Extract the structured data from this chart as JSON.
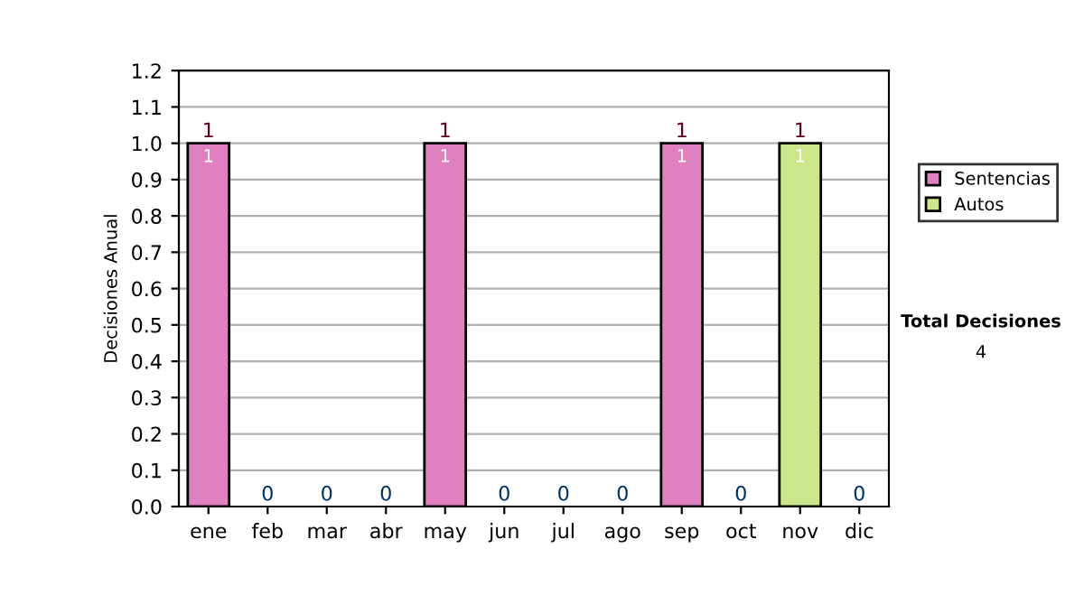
{
  "chart_data": {
    "type": "bar",
    "ylabel": "Decisiones Anual",
    "categories": [
      "ene",
      "feb",
      "mar",
      "abr",
      "may",
      "jun",
      "jul",
      "ago",
      "sep",
      "oct",
      "nov",
      "dic"
    ],
    "stacked": true,
    "series": [
      {
        "name": "Sentencias",
        "color": "#df80c0",
        "values": [
          1,
          0,
          0,
          0,
          1,
          0,
          0,
          0,
          1,
          0,
          0,
          0
        ],
        "value_labels": [
          "1",
          null,
          null,
          null,
          "1",
          null,
          null,
          null,
          "1",
          null,
          null,
          null
        ]
      },
      {
        "name": "Autos",
        "color": "#cce68c",
        "values": [
          0,
          0,
          0,
          0,
          0,
          0,
          0,
          0,
          0,
          0,
          1,
          0
        ],
        "value_labels": [
          null,
          null,
          null,
          null,
          null,
          null,
          null,
          null,
          null,
          null,
          "1",
          null
        ]
      }
    ],
    "totals": [
      "1",
      "0",
      "0",
      "0",
      "1",
      "0",
      "0",
      "0",
      "1",
      "0",
      "1",
      "0"
    ],
    "ylim": [
      0,
      1.2
    ],
    "yticks": [
      "0.0",
      "0.1",
      "0.2",
      "0.3",
      "0.4",
      "0.5",
      "0.6",
      "0.7",
      "0.8",
      "0.9",
      "1.0",
      "1.1",
      "1.2"
    ],
    "grid": "y",
    "legend": "right",
    "annotations": [
      "Total Decisiones",
      "4"
    ]
  }
}
